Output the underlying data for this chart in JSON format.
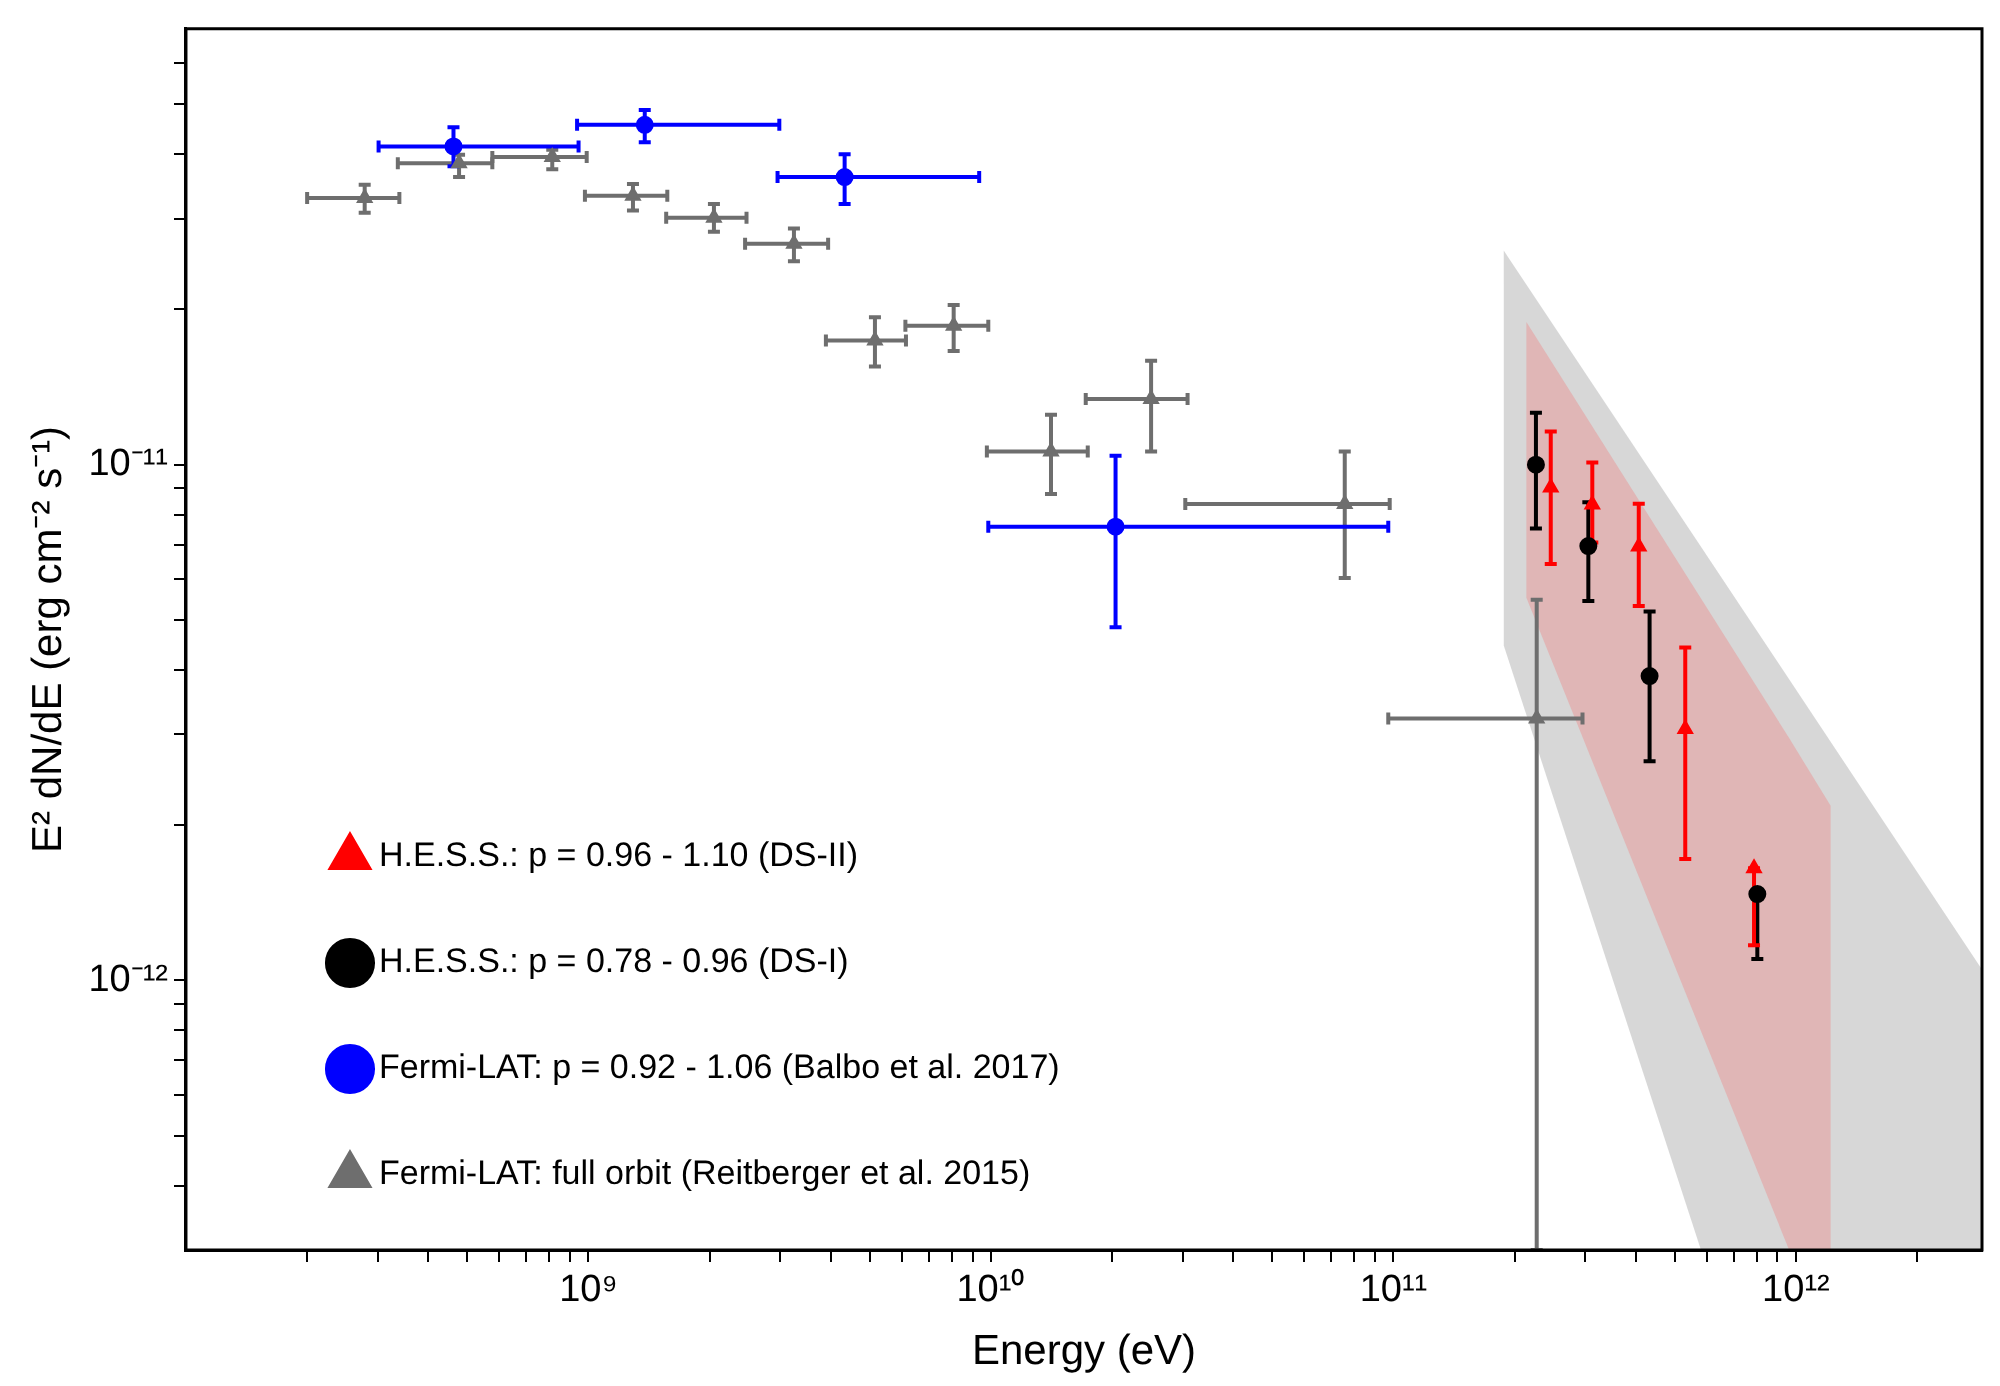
{
  "chart_data": {
    "type": "scatter",
    "xlabel": "Energy (eV)",
    "ylabel": "E² dN/dE (erg cm⁻² s⁻¹)",
    "log": "xy",
    "legend": "bottom left",
    "xlim": [
      100000000.0,
      2900000000000.0
    ],
    "ylim": [
      3e-13,
      7e-11
    ],
    "xticks": [
      {
        "value": 200000000.0,
        "label": null
      },
      {
        "value": 300000000.0,
        "label": null
      },
      {
        "value": 400000000.0,
        "label": null
      },
      {
        "value": 500000000.0,
        "label": null
      },
      {
        "value": 600000000.0,
        "label": null
      },
      {
        "value": 700000000.0,
        "label": null
      },
      {
        "value": 800000000.0,
        "label": null
      },
      {
        "value": 900000000.0,
        "label": null
      },
      {
        "value": 1000000000.0,
        "label": "10⁹"
      },
      {
        "value": 2000000000.0,
        "label": null
      },
      {
        "value": 3000000000.0,
        "label": null
      },
      {
        "value": 4000000000.0,
        "label": null
      },
      {
        "value": 5000000000.0,
        "label": null
      },
      {
        "value": 6000000000.0,
        "label": null
      },
      {
        "value": 7000000000.0,
        "label": null
      },
      {
        "value": 8000000000.0,
        "label": null
      },
      {
        "value": 9000000000.0,
        "label": null
      },
      {
        "value": 10000000000.0,
        "label": "10¹⁰"
      },
      {
        "value": 20000000000.0,
        "label": null
      },
      {
        "value": 30000000000.0,
        "label": null
      },
      {
        "value": 40000000000.0,
        "label": null
      },
      {
        "value": 50000000000.0,
        "label": null
      },
      {
        "value": 60000000000.0,
        "label": null
      },
      {
        "value": 70000000000.0,
        "label": null
      },
      {
        "value": 80000000000.0,
        "label": null
      },
      {
        "value": 90000000000.0,
        "label": null
      },
      {
        "value": 100000000000.0,
        "label": "10¹¹"
      },
      {
        "value": 200000000000.0,
        "label": null
      },
      {
        "value": 300000000000.0,
        "label": null
      },
      {
        "value": 400000000000.0,
        "label": null
      },
      {
        "value": 500000000000.0,
        "label": null
      },
      {
        "value": 600000000000.0,
        "label": null
      },
      {
        "value": 700000000000.0,
        "label": null
      },
      {
        "value": 800000000000.0,
        "label": null
      },
      {
        "value": 900000000000.0,
        "label": null
      },
      {
        "value": 1000000000000.0,
        "label": "10¹²"
      },
      {
        "value": 2000000000000.0,
        "label": null
      }
    ],
    "yticks": [
      {
        "value": 4e-13,
        "label": null
      },
      {
        "value": 5e-13,
        "label": null
      },
      {
        "value": 6e-13,
        "label": null
      },
      {
        "value": 7e-13,
        "label": null
      },
      {
        "value": 8e-13,
        "label": null
      },
      {
        "value": 9e-13,
        "label": null
      },
      {
        "value": 1e-12,
        "label": "10⁻¹²"
      },
      {
        "value": 2e-12,
        "label": null
      },
      {
        "value": 3e-12,
        "label": null
      },
      {
        "value": 4e-12,
        "label": null
      },
      {
        "value": 5e-12,
        "label": null
      },
      {
        "value": 6e-12,
        "label": null
      },
      {
        "value": 7e-12,
        "label": null
      },
      {
        "value": 8e-12,
        "label": null
      },
      {
        "value": 9e-12,
        "label": null
      },
      {
        "value": 1e-11,
        "label": "10⁻¹¹"
      },
      {
        "value": 2e-11,
        "label": null
      },
      {
        "value": 3e-11,
        "label": null
      },
      {
        "value": 4e-11,
        "label": null
      },
      {
        "value": 5e-11,
        "label": null
      },
      {
        "value": 6e-11,
        "label": null
      }
    ],
    "series": [
      {
        "type": "area",
        "color": "#8c8c8c",
        "x": [
          188000000000.0,
          581000000000.0,
          2900000000000.0
        ],
        "values": [
          null,
          null,
          null
        ],
        "upper": [
          2.6e-11,
          6.93e-12,
          1.05e-12
        ],
        "lower": [
          4.46e-12,
          3e-13,
          3e-13
        ]
      },
      {
        "type": "area",
        "color": "#f07878",
        "x": [
          214000000000.0,
          962000000000.0,
          1220000000000.0
        ],
        "values": [
          null,
          null,
          null
        ],
        "upper": [
          1.89e-11,
          2.95e-12,
          2.18e-12
        ],
        "lower": [
          5.52e-12,
          3e-13,
          3e-13
        ]
      },
      {
        "name": "Fermi-LAT: full orbit (Reitberger et al. 2015)",
        "color": "#6e6e6e",
        "marker": "triangle",
        "x": [
          278000000.0,
          477000000.0,
          813000000.0,
          1290000000.0,
          2050000000.0,
          3240000000.0,
          5150000000.0,
          8080000000.0,
          14100000000.0,
          25000000000.0,
          75700000000.0,
          227000000000.0
        ],
        "values": [
          3.29e-11,
          3.84e-11,
          3.95e-11,
          3.32e-11,
          3.01e-11,
          2.68e-11,
          1.74e-11,
          1.86e-11,
          1.06e-11,
          1.34e-11,
          8.39e-12,
          3.22e-12
        ],
        "xerrors": [
          [
            200000000.0,
            339000000.0
          ],
          [
            336000000.0,
            577000000.0
          ],
          [
            577000000.0,
            990000000.0
          ],
          [
            980000000.0,
            1570000000.0
          ],
          [
            1560000000.0,
            2470000000.0
          ],
          [
            2450000000.0,
            3940000000.0
          ],
          [
            3890000000.0,
            6150000000.0
          ],
          [
            6130000000.0,
            9850000000.0
          ],
          [
            9770000000.0,
            17400000000.0
          ],
          [
            17200000000.0,
            30800000000.0
          ],
          [
            30400000000.0,
            97900000000.0
          ],
          [
            97100000000.0,
            295000000000.0
          ]
        ],
        "errors": [
          [
            3.08e-11,
            3.49e-11
          ],
          [
            3.61e-11,
            3.99e-11
          ],
          [
            3.74e-11,
            4.08e-11
          ],
          [
            3.11e-11,
            3.5e-11
          ],
          [
            2.83e-11,
            3.2e-11
          ],
          [
            2.48e-11,
            2.87e-11
          ],
          [
            1.55e-11,
            1.93e-11
          ],
          [
            1.66e-11,
            2.04e-11
          ],
          [
            8.77e-12,
            1.25e-11
          ],
          [
            1.06e-11,
            1.59e-11
          ],
          [
            6.03e-12,
            1.06e-11
          ],
          [
            3e-13,
            5.47e-12
          ]
        ]
      },
      {
        "name": "Fermi-LAT: p = 0.92 - 1.06 (Balbo et al. 2017)",
        "color": "#0000ff",
        "marker": "circle",
        "x": [
          462000000.0,
          1380000000.0,
          4330000000.0,
          20400000000.0
        ],
        "values": [
          4.14e-11,
          4.56e-11,
          3.61e-11,
          7.58e-12
        ],
        "xerrors": [
          [
            301000000.0,
            945000000.0
          ],
          [
            937000000.0,
            2980000000.0
          ],
          [
            2950000000.0,
            9350000000.0
          ],
          [
            9850000000.0,
            97100000000.0
          ]
        ],
        "errors": [
          [
            3.79e-11,
            4.51e-11
          ],
          [
            4.22e-11,
            4.87e-11
          ],
          [
            3.2e-11,
            4e-11
          ],
          [
            4.84e-12,
            1.04e-11
          ]
        ]
      },
      {
        "name": "H.E.S.S.: p = 0.78 - 0.96 (DS-I)",
        "color": "#000000",
        "marker": "circle",
        "x": [
          226000000000.0,
          305000000000.0,
          433000000000.0,
          802000000000.0
        ],
        "values": [
          1e-11,
          6.95e-12,
          3.89e-12,
          1.47e-12
        ],
        "errors": [
          [
            7.52e-12,
            1.26e-11
          ],
          [
            5.44e-12,
            8.45e-12
          ],
          [
            2.66e-12,
            5.19e-12
          ],
          [
            1.1e-12,
            1.47e-12
          ]
        ]
      },
      {
        "name": "H.E.S.S.: p = 0.96 - 1.10 (DS-II)",
        "color": "#ff0000",
        "marker": "triangle",
        "x": [
          246000000000.0,
          312000000000.0,
          407000000000.0,
          531000000000.0,
          787000000000.0
        ],
        "values": [
          9.03e-12,
          8.37e-12,
          6.94e-12,
          3.07e-12,
          1.65e-12
        ],
        "errors": [
          [
            6.42e-12,
            1.16e-11
          ],
          [
            7.06e-12,
            1.01e-11
          ],
          [
            5.32e-12,
            8.4e-12
          ],
          [
            1.72e-12,
            4.42e-12
          ],
          [
            1.17e-12,
            1.65e-12
          ]
        ]
      }
    ]
  }
}
